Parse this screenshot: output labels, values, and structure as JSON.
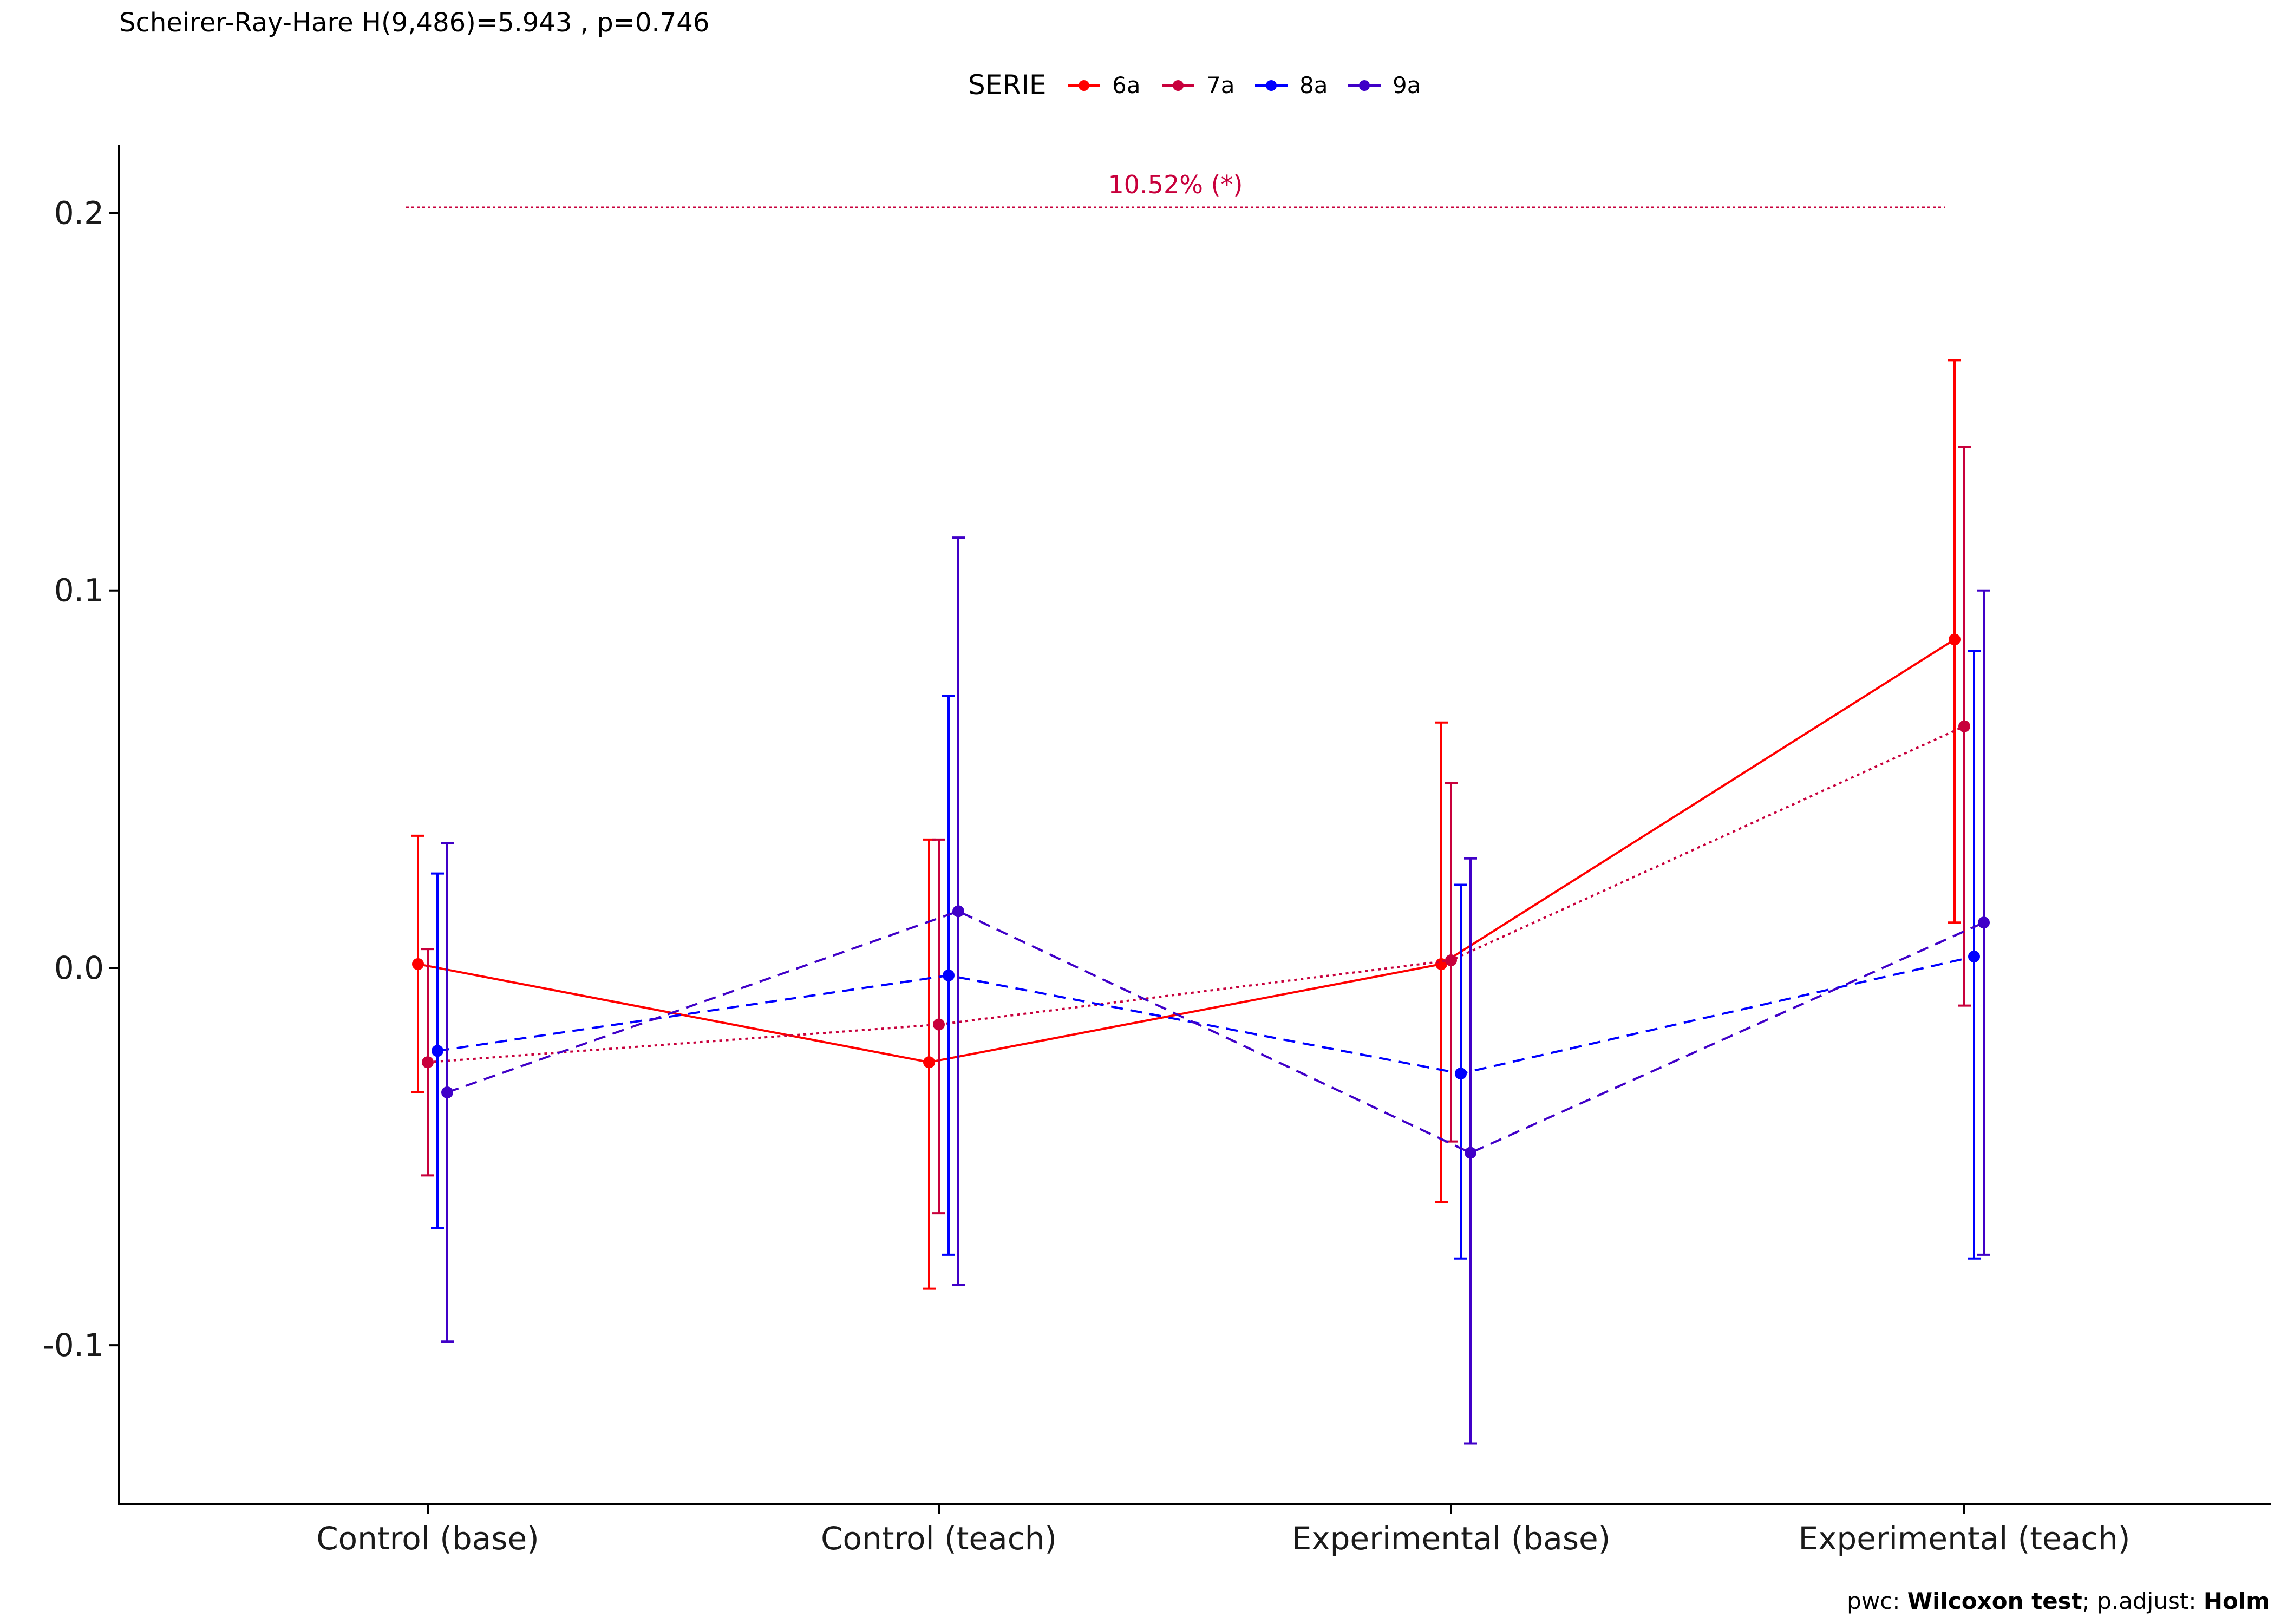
{
  "subtitle": "Scheirer-Ray-Hare H(9,486)=5.943 , p=0.746",
  "caption": {
    "prefix": "pwc: ",
    "test": "Wilcoxon test",
    "middle": "; p.adjust: ",
    "method": "Holm"
  },
  "chart_data": {
    "type": "line",
    "categories": [
      "Control (base)",
      "Control (teach)",
      "Experimental (base)",
      "Experimental (teach)"
    ],
    "legend": {
      "title": "SERIE",
      "placement": "top"
    },
    "y_ticks": [
      -0.1,
      0.0,
      0.1,
      0.2
    ],
    "y_tick_labels": [
      "-0.1",
      "0.0",
      "0.1",
      "0.2"
    ],
    "ylim": [
      -0.142,
      0.218
    ],
    "grid": false,
    "series": [
      {
        "name": "6a",
        "color": "#ff0000",
        "dash": "solid",
        "values": [
          0.001,
          -0.025,
          0.001,
          0.087
        ],
        "err_low": [
          -0.033,
          -0.085,
          -0.062,
          0.012
        ],
        "err_high": [
          0.035,
          0.034,
          0.065,
          0.161
        ]
      },
      {
        "name": "7a",
        "color": "#c8003c",
        "dash": "dotted",
        "values": [
          -0.025,
          -0.015,
          0.002,
          0.064
        ],
        "err_low": [
          -0.055,
          -0.065,
          -0.046,
          -0.01
        ],
        "err_high": [
          0.005,
          0.034,
          0.049,
          0.138
        ]
      },
      {
        "name": "8a",
        "color": "#0000ff",
        "dash": "dashed",
        "values": [
          -0.022,
          -0.002,
          -0.028,
          0.003
        ],
        "err_low": [
          -0.069,
          -0.076,
          -0.077,
          -0.077
        ],
        "err_high": [
          0.025,
          0.072,
          0.022,
          0.084
        ]
      },
      {
        "name": "9a",
        "color": "#4000c8",
        "dash": "dashed",
        "values": [
          -0.033,
          0.015,
          -0.049,
          0.012
        ],
        "err_low": [
          -0.099,
          -0.084,
          -0.126,
          -0.076
        ],
        "err_high": [
          0.033,
          0.114,
          0.029,
          0.1
        ]
      }
    ],
    "annotations": [
      {
        "text": "10.52% (*)",
        "y": 0.2015,
        "from_category": 0,
        "to_category": 3,
        "color": "#c8003c"
      }
    ]
  }
}
